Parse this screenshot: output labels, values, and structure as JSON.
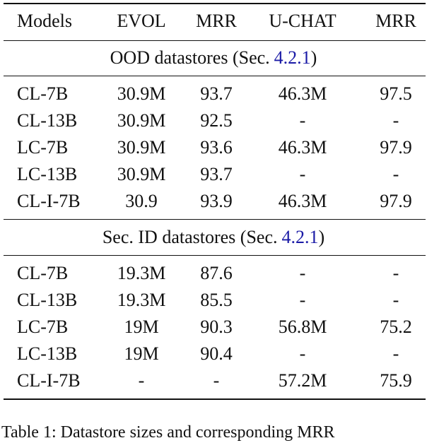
{
  "table": {
    "header": [
      "Models",
      "EVOL",
      "MRR",
      "U-CHAT",
      "MRR"
    ],
    "sections": [
      {
        "title_prefix": "OOD datastores (Sec.",
        "title_ref": "4.2.1",
        "title_suffix": ")",
        "rows": [
          [
            "CL-7B",
            "30.9M",
            "93.7",
            "46.3M",
            "97.5"
          ],
          [
            "CL-13B",
            "30.9M",
            "92.5",
            "-",
            "-"
          ],
          [
            "LC-7B",
            "30.9M",
            "93.6",
            "46.3M",
            "97.9"
          ],
          [
            "LC-13B",
            "30.9M",
            "93.7",
            "-",
            "-"
          ],
          [
            "CL-I-7B",
            "30.9",
            "93.9",
            "46.3M",
            "97.9"
          ]
        ]
      },
      {
        "title_prefix": "Sec. ID datastores (Sec.",
        "title_ref": "4.2.1",
        "title_suffix": ")",
        "rows": [
          [
            "CL-7B",
            "19.3M",
            "87.6",
            "-",
            "-"
          ],
          [
            "CL-13B",
            "19.3M",
            "85.5",
            "-",
            "-"
          ],
          [
            "LC-7B",
            "19M",
            "90.3",
            "56.8M",
            "75.2"
          ],
          [
            "LC-13B",
            "19M",
            "90.4",
            "-",
            "-"
          ],
          [
            "CL-I-7B",
            "-",
            "-",
            "57.2M",
            "75.9"
          ]
        ]
      }
    ],
    "caption": "Table 1: Datastore sizes and corresponding MRR"
  }
}
